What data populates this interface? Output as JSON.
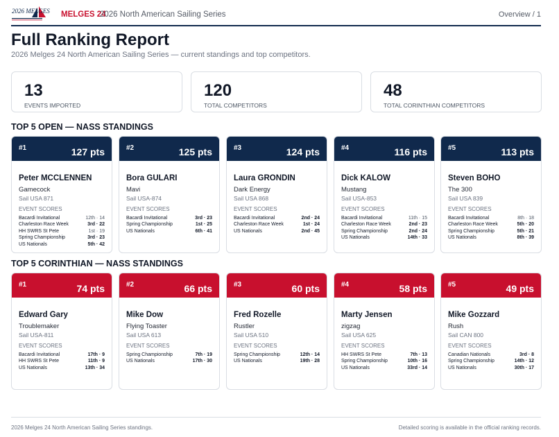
{
  "header": {
    "logo_text": "2026 MELGES",
    "brand": "MELGES 24",
    "series": "2026 North American Sailing Series",
    "overview": "Overview / 1"
  },
  "title": "Full Ranking Report",
  "subtitle": "2026 Melges 24 North American Sailing Series — current standings and top competitors.",
  "stats": [
    {
      "value": "13",
      "label": "EVENTS IMPORTED"
    },
    {
      "value": "120",
      "label": "TOTAL COMPETITORS"
    },
    {
      "value": "48",
      "label": "TOTAL CORINTHIAN COMPETITORS"
    }
  ],
  "open": {
    "title": "TOP 5 OPEN — NASS STANDINGS",
    "cards": [
      {
        "rank": "#1",
        "pts": "127 pts",
        "name": "Peter MCCLENNEN",
        "boat": "Gamecock",
        "sail": "Sail USA 871",
        "scores_label": "EVENT SCORES",
        "rows": [
          {
            "event": "Bacardi Invitational",
            "result": "12th · 14",
            "bold": false
          },
          {
            "event": "Charleston Race Week",
            "result": "3rd · 22",
            "bold": true
          },
          {
            "event": "HH SWRS St Pete",
            "result": "1st · 19",
            "bold": false
          },
          {
            "event": "Spring Championship",
            "result": "3rd · 23",
            "bold": true
          },
          {
            "event": "US Nationals",
            "result": "5th · 42",
            "bold": true
          }
        ]
      },
      {
        "rank": "#2",
        "pts": "125 pts",
        "name": "Bora GULARI",
        "boat": "Mavi",
        "sail": "Sail USA-874",
        "scores_label": "EVENT SCORES",
        "rows": [
          {
            "event": "Bacardi Invitational",
            "result": "3rd · 23",
            "bold": true
          },
          {
            "event": "Spring Championship",
            "result": "1st · 25",
            "bold": true
          },
          {
            "event": "US Nationals",
            "result": "6th · 41",
            "bold": true
          }
        ]
      },
      {
        "rank": "#3",
        "pts": "124 pts",
        "name": "Laura GRONDIN",
        "boat": "Dark Energy",
        "sail": "Sail USA 868",
        "scores_label": "EVENT SCORES",
        "rows": [
          {
            "event": "Bacardi Invitational",
            "result": "2nd · 24",
            "bold": true
          },
          {
            "event": "Charleston Race Week",
            "result": "1st · 24",
            "bold": true
          },
          {
            "event": "US Nationals",
            "result": "2nd · 45",
            "bold": true
          }
        ]
      },
      {
        "rank": "#4",
        "pts": "116 pts",
        "name": "Dick KALOW",
        "boat": "Mustang",
        "sail": "Sail USA-853",
        "scores_label": "EVENT SCORES",
        "rows": [
          {
            "event": "Bacardi Invitational",
            "result": "11th · 15",
            "bold": false
          },
          {
            "event": "Charleston Race Week",
            "result": "2nd · 23",
            "bold": true
          },
          {
            "event": "Spring Championship",
            "result": "2nd · 24",
            "bold": true
          },
          {
            "event": "US Nationals",
            "result": "14th · 33",
            "bold": true
          }
        ]
      },
      {
        "rank": "#5",
        "pts": "113 pts",
        "name": "Steven BOHO",
        "boat": "The 300",
        "sail": "Sail USA 839",
        "scores_label": "EVENT SCORES",
        "rows": [
          {
            "event": "Bacardi Invitational",
            "result": "8th · 18",
            "bold": false
          },
          {
            "event": "Charleston Race Week",
            "result": "5th · 20",
            "bold": true
          },
          {
            "event": "Spring Championship",
            "result": "5th · 21",
            "bold": true
          },
          {
            "event": "US Nationals",
            "result": "8th · 39",
            "bold": true
          }
        ]
      }
    ]
  },
  "corinthian": {
    "title": "TOP 5 CORINTHIAN — NASS STANDINGS",
    "cards": [
      {
        "rank": "#1",
        "pts": "74 pts",
        "name": "Edward Gary",
        "boat": "Troublemaker",
        "sail": "Sail USA-811",
        "scores_label": "EVENT SCORES",
        "rows": [
          {
            "event": "Bacardi Invitational",
            "result": "17th · 9",
            "bold": true
          },
          {
            "event": "HH SWRS St Pete",
            "result": "11th · 9",
            "bold": true
          },
          {
            "event": "US Nationals",
            "result": "13th · 34",
            "bold": true
          }
        ]
      },
      {
        "rank": "#2",
        "pts": "66 pts",
        "name": "Mike Dow",
        "boat": "Flying Toaster",
        "sail": "Sail USA 613",
        "scores_label": "EVENT SCORES",
        "rows": [
          {
            "event": "Spring Championship",
            "result": "7th · 19",
            "bold": true
          },
          {
            "event": "US Nationals",
            "result": "17th · 30",
            "bold": true
          }
        ]
      },
      {
        "rank": "#3",
        "pts": "60 pts",
        "name": "Fred Rozelle",
        "boat": "Rustler",
        "sail": "Sail USA 510",
        "scores_label": "EVENT SCORES",
        "rows": [
          {
            "event": "Spring Championship",
            "result": "12th · 14",
            "bold": true
          },
          {
            "event": "US Nationals",
            "result": "19th · 28",
            "bold": true
          }
        ]
      },
      {
        "rank": "#4",
        "pts": "58 pts",
        "name": "Marty Jensen",
        "boat": "zigzag",
        "sail": "Sail USA 625",
        "scores_label": "EVENT SCORES",
        "rows": [
          {
            "event": "HH SWRS St Pete",
            "result": "7th · 13",
            "bold": true
          },
          {
            "event": "Spring Championship",
            "result": "10th · 16",
            "bold": true
          },
          {
            "event": "US Nationals",
            "result": "33rd · 14",
            "bold": true
          }
        ]
      },
      {
        "rank": "#5",
        "pts": "49 pts",
        "name": "Mike Gozzard",
        "boat": "Rush",
        "sail": "Sail CAN 800",
        "scores_label": "EVENT SCORES",
        "rows": [
          {
            "event": "Canadian Nationals",
            "result": "3rd · 8",
            "bold": true
          },
          {
            "event": "Spring Championship",
            "result": "14th · 12",
            "bold": true
          },
          {
            "event": "US Nationals",
            "result": "30th · 17",
            "bold": true
          }
        ]
      }
    ]
  },
  "footer": {
    "left": "2026 Melges 24 North American Sailing Series standings.",
    "right": "Detailed scoring is available in the official ranking records."
  },
  "colors": {
    "navy": "#10294c",
    "red": "#c8102e"
  }
}
